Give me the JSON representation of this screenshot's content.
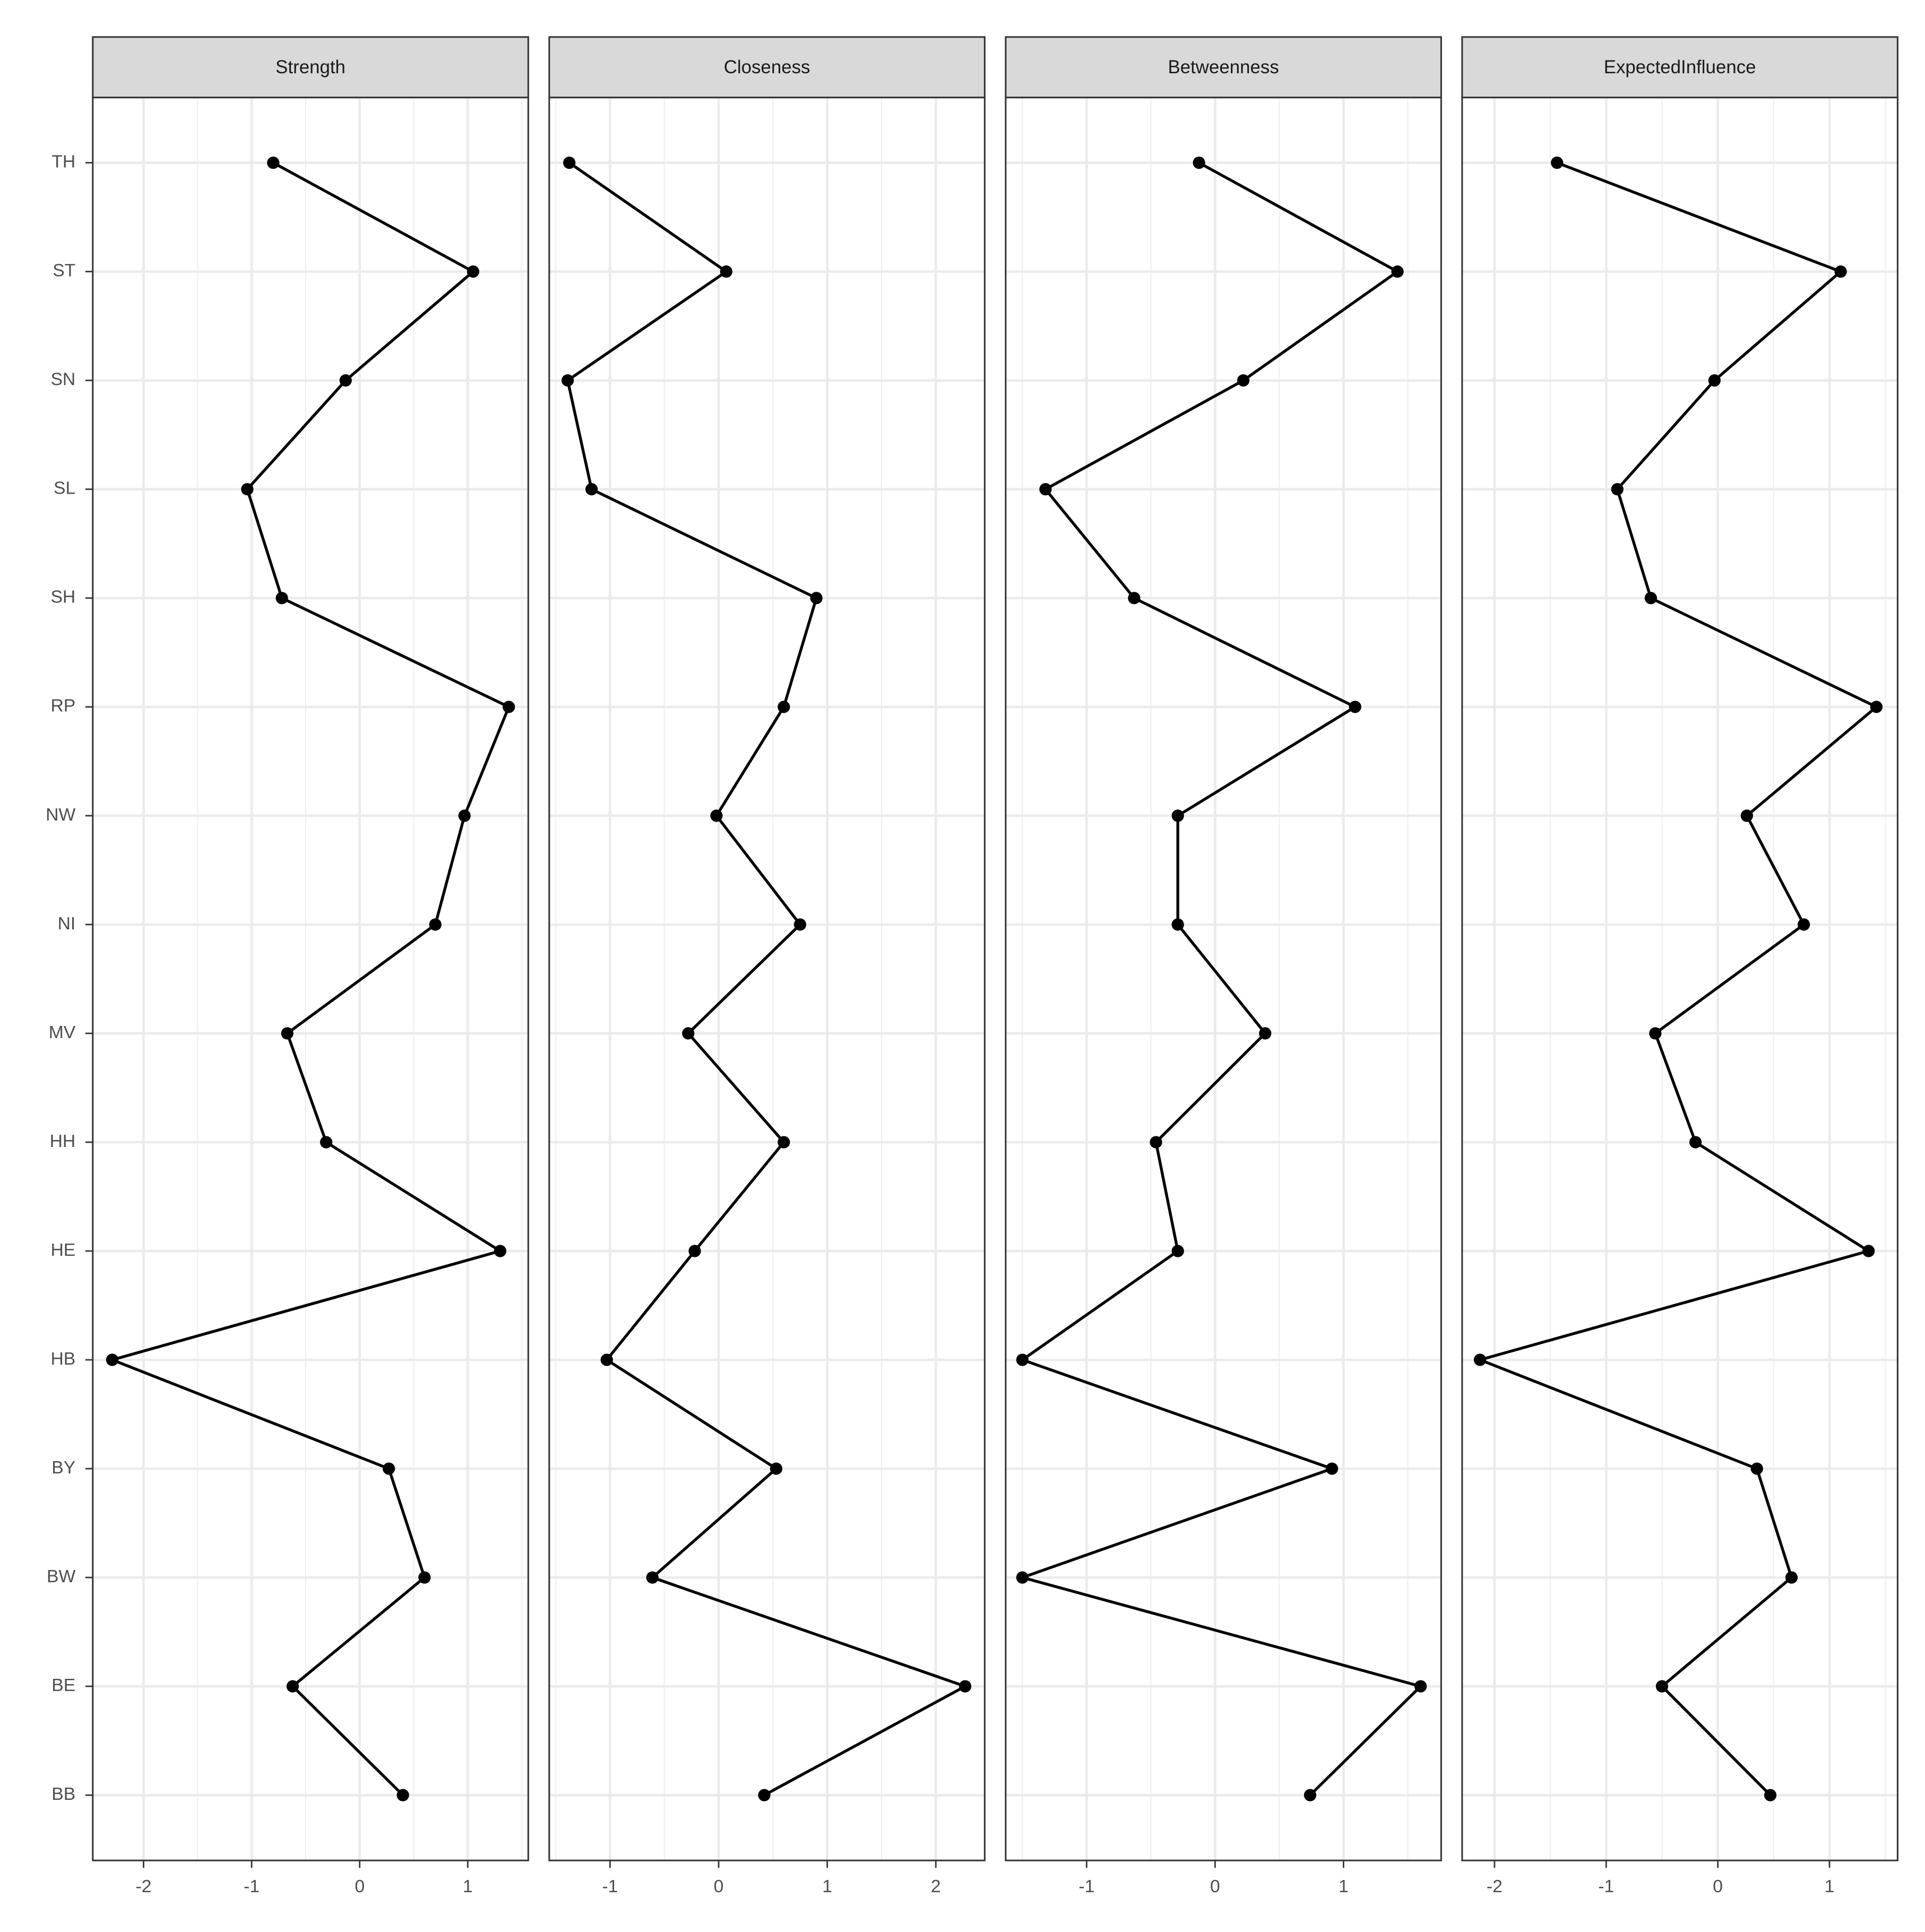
{
  "chart_data": [
    {
      "type": "line",
      "title": "Strength",
      "color": "#000000",
      "grid": true,
      "categories": [
        "TH",
        "ST",
        "SN",
        "SL",
        "SH",
        "RP",
        "NW",
        "NI",
        "MV",
        "HH",
        "HE",
        "HB",
        "BY",
        "BW",
        "BE",
        "BB"
      ],
      "values": [
        -0.8,
        1.05,
        -0.13,
        -1.04,
        -0.72,
        1.38,
        0.97,
        0.7,
        -0.67,
        -0.31,
        1.3,
        -2.29,
        0.27,
        0.6,
        -0.62,
        0.4
      ],
      "xlim": [
        -2.47,
        1.56
      ],
      "xticks": [
        -2,
        -1,
        0,
        1
      ]
    },
    {
      "type": "line",
      "title": "Closeness",
      "color": "#000000",
      "grid": true,
      "values": [
        -1.375,
        0.07,
        -1.39,
        -1.17,
        0.9,
        0.6,
        -0.02,
        0.75,
        -0.28,
        0.6,
        -0.22,
        -1.03,
        0.53,
        -0.61,
        2.27,
        0.42
      ],
      "xlim": [
        -1.56,
        2.45
      ],
      "xticks": [
        -1,
        0,
        1,
        2
      ]
    },
    {
      "type": "line",
      "title": "Betweenness",
      "color": "#000000",
      "grid": true,
      "values": [
        -0.125,
        1.42,
        0.22,
        -1.32,
        -0.63,
        1.09,
        -0.29,
        -0.29,
        0.39,
        -0.46,
        -0.29,
        -1.5,
        0.91,
        -1.5,
        1.6,
        0.74
      ],
      "xlim": [
        -1.63,
        1.76
      ],
      "xticks": [
        -1,
        0,
        1
      ]
    },
    {
      "type": "line",
      "title": "ExpectedInfluence",
      "color": "#000000",
      "grid": true,
      "values": [
        -1.44,
        1.1,
        -0.03,
        -0.9,
        -0.6,
        1.42,
        0.26,
        0.77,
        -0.56,
        -0.2,
        1.35,
        -2.13,
        0.35,
        0.66,
        -0.5,
        0.47
      ],
      "xlim": [
        -2.29,
        1.61
      ],
      "xticks": [
        -2,
        -1,
        0,
        1
      ]
    }
  ]
}
